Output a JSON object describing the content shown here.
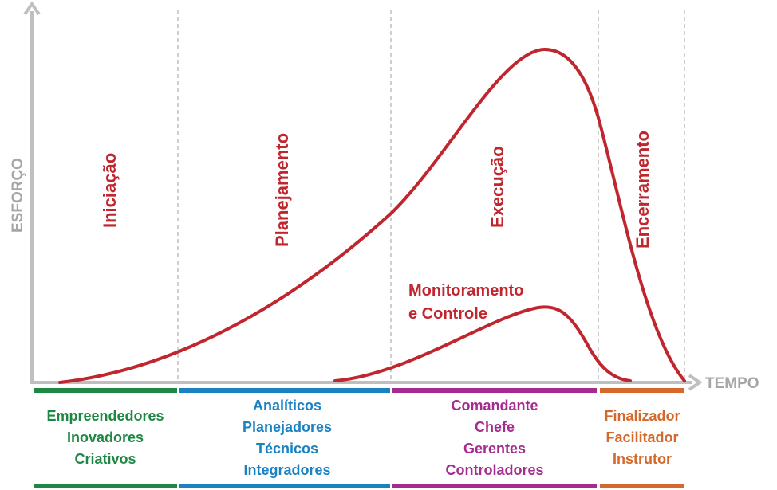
{
  "axes": {
    "y_label": "ESFORÇO",
    "x_label": "TEMPO"
  },
  "phases": [
    {
      "label": "Iniciação"
    },
    {
      "label": "Planejamento"
    },
    {
      "label": "Execução"
    },
    {
      "label": "Encerramento"
    }
  ],
  "curves": {
    "main_label": "",
    "monitoring_label_line1": "Monitoramento",
    "monitoring_label_line2": "e Controle"
  },
  "role_groups": [
    {
      "roles": [
        "Empreendedores",
        "Inovadores",
        "Criativos"
      ]
    },
    {
      "roles": [
        "Analíticos",
        "Planejadores",
        "Técnicos",
        "Integradores"
      ]
    },
    {
      "roles": [
        "Comandante",
        "Chefe",
        "Gerentes",
        "Controladores"
      ]
    },
    {
      "roles": [
        "Finalizador",
        "Facilitador",
        "Instrutor"
      ]
    }
  ],
  "colors": {
    "curve": "#c0262e",
    "axis": "#bfbfbf",
    "divider": "#bdbdbd",
    "phase_label": "#c0262e",
    "group_1": "#1e8744",
    "group_2": "#1b82c2",
    "group_3": "#a62b8f",
    "group_4": "#d4692b"
  }
}
